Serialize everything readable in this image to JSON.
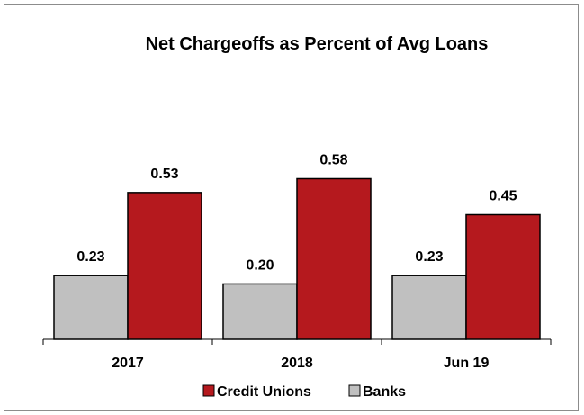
{
  "chart_data": {
    "type": "bar",
    "title": "Net Chargeoffs as Percent of Avg Loans",
    "categories": [
      "2017",
      "2018",
      "Jun 19"
    ],
    "series": [
      {
        "name": "Banks",
        "values": [
          0.23,
          0.2,
          0.23
        ],
        "color": "#c0c0c0"
      },
      {
        "name": "Credit Unions",
        "values": [
          0.53,
          0.58,
          0.45
        ],
        "color": "#b5191e"
      }
    ],
    "legend_order": [
      "Credit Unions",
      "Banks"
    ],
    "legend_position": "bottom",
    "ylim": [
      0,
      0.77
    ],
    "grid": false,
    "y_axis_visible": false,
    "data_labels": true
  }
}
